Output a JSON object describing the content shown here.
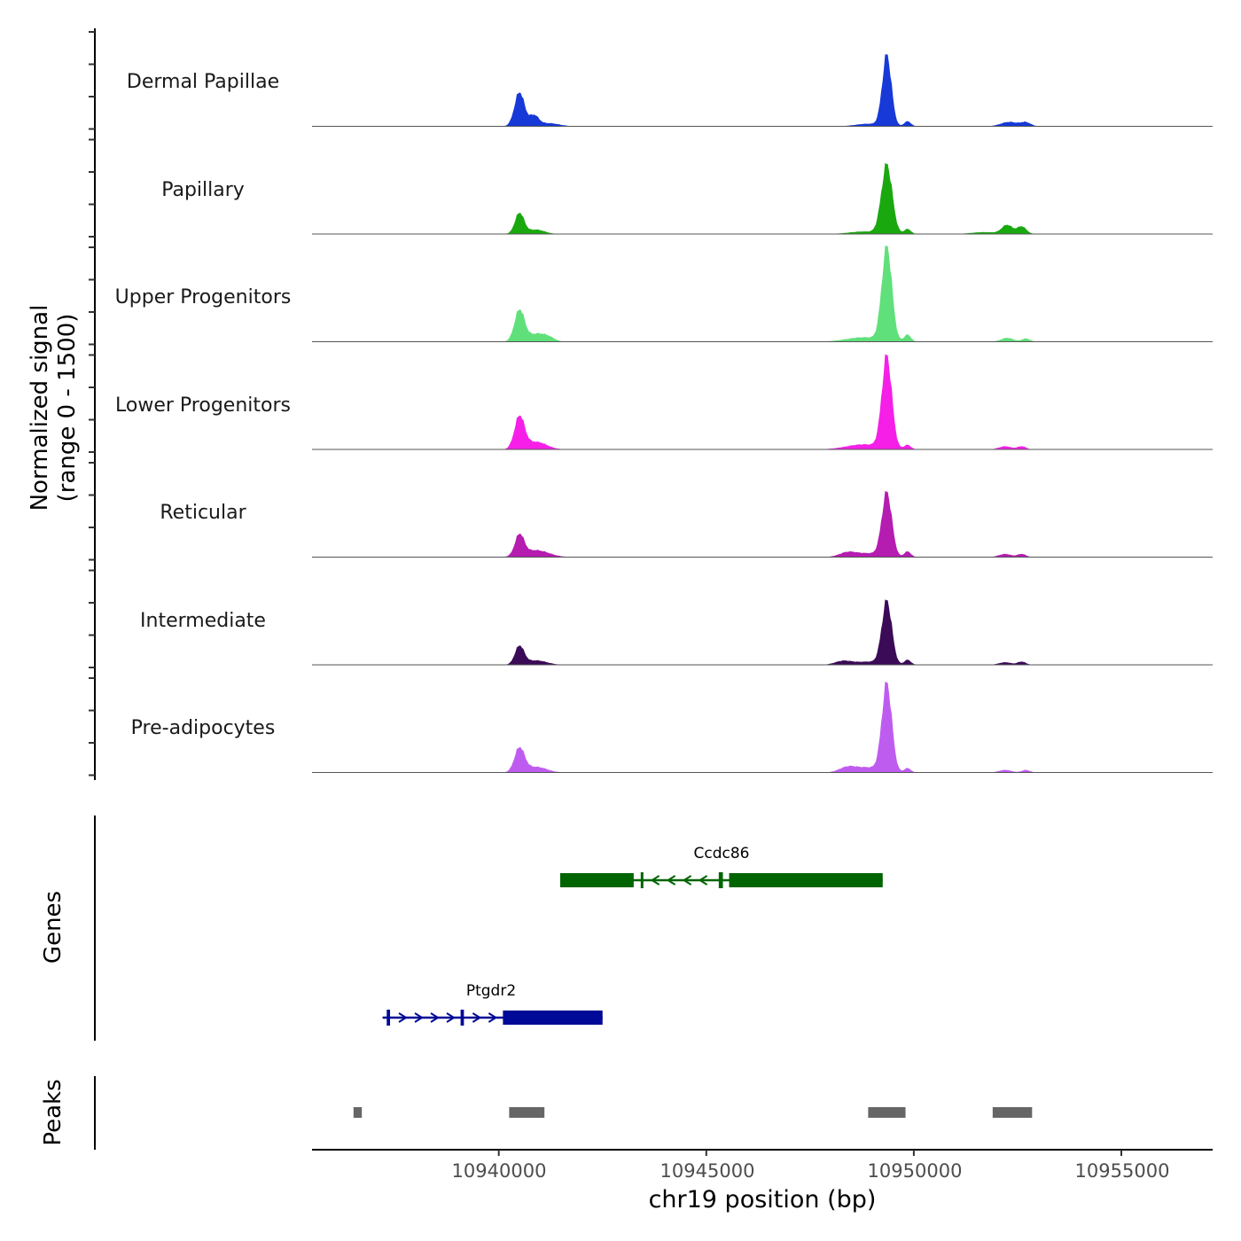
{
  "chart_data": {
    "type": "area",
    "chromosome": "chr19",
    "xlabel": "chr19 position (bp)",
    "ylabel_line1": "Normalized signal",
    "ylabel_line2": "(range 0 - 1500)",
    "signal_range": [
      0,
      1500
    ],
    "xlim": [
      10935500,
      10957200
    ],
    "x_ticks": [
      10940000,
      10945000,
      10950000,
      10955000
    ],
    "x_tick_labels": [
      "10940000",
      "10945000",
      "10950000",
      "10955000"
    ],
    "genes_label": "Genes",
    "peaks_label": "Peaks",
    "tracks": [
      {
        "name": "Dermal Papillae",
        "color": "#1739d8",
        "peaks": [
          [
            10940500,
            540,
            120
          ],
          [
            10940850,
            160,
            110
          ],
          [
            10941200,
            50,
            250
          ],
          [
            10948900,
            40,
            300
          ],
          [
            10949350,
            1120,
            110
          ],
          [
            10949850,
            80,
            80
          ],
          [
            10952300,
            70,
            200
          ],
          [
            10952700,
            60,
            120
          ]
        ]
      },
      {
        "name": "Papillary",
        "color": "#1aa80f",
        "peaks": [
          [
            10940500,
            330,
            110
          ],
          [
            10940900,
            70,
            200
          ],
          [
            10948800,
            40,
            350
          ],
          [
            10949350,
            1090,
            130
          ],
          [
            10949850,
            80,
            80
          ],
          [
            10951700,
            30,
            300
          ],
          [
            10952250,
            140,
            130
          ],
          [
            10952600,
            120,
            110
          ]
        ]
      },
      {
        "name": "Upper Progenitors",
        "color": "#60e07a",
        "peaks": [
          [
            10940500,
            500,
            120
          ],
          [
            10940900,
            120,
            200
          ],
          [
            10941200,
            60,
            150
          ],
          [
            10948800,
            70,
            420
          ],
          [
            10949350,
            1500,
            120
          ],
          [
            10949850,
            110,
            80
          ],
          [
            10952250,
            60,
            150
          ],
          [
            10952700,
            50,
            100
          ]
        ]
      },
      {
        "name": "Lower Progenitors",
        "color": "#f51fe8",
        "peaks": [
          [
            10940500,
            510,
            120
          ],
          [
            10940900,
            120,
            250
          ],
          [
            10948800,
            80,
            420
          ],
          [
            10949350,
            1450,
            120
          ],
          [
            10949850,
            70,
            80
          ],
          [
            10952200,
            50,
            150
          ],
          [
            10952600,
            50,
            100
          ]
        ]
      },
      {
        "name": "Reticular",
        "color": "#b51cb0",
        "peaks": [
          [
            10940500,
            330,
            110
          ],
          [
            10940900,
            110,
            300
          ],
          [
            10948400,
            70,
            200
          ],
          [
            10948900,
            60,
            300
          ],
          [
            10949350,
            1010,
            120
          ],
          [
            10949850,
            90,
            80
          ],
          [
            10952200,
            50,
            150
          ],
          [
            10952600,
            50,
            100
          ]
        ]
      },
      {
        "name": "Intermediate",
        "color": "#3b0b57",
        "peaks": [
          [
            10940500,
            290,
            110
          ],
          [
            10940900,
            70,
            250
          ],
          [
            10948300,
            60,
            200
          ],
          [
            10948900,
            50,
            300
          ],
          [
            10949350,
            1000,
            120
          ],
          [
            10949850,
            80,
            80
          ],
          [
            10952200,
            40,
            150
          ],
          [
            10952600,
            50,
            100
          ]
        ]
      },
      {
        "name": "Pre-adipocytes",
        "color": "#bf5cf0",
        "peaks": [
          [
            10940500,
            380,
            120
          ],
          [
            10940900,
            90,
            250
          ],
          [
            10948400,
            80,
            200
          ],
          [
            10948900,
            80,
            300
          ],
          [
            10949350,
            1390,
            120
          ],
          [
            10949850,
            70,
            80
          ],
          [
            10952200,
            40,
            150
          ],
          [
            10952700,
            40,
            100
          ]
        ]
      }
    ],
    "genes": [
      {
        "name": "Ccdc86",
        "strand": "-",
        "color": "#006400",
        "start": 10941480,
        "end": 10949250,
        "blocks": [
          [
            10941480,
            10943250
          ],
          [
            10943420,
            10943480
          ],
          [
            10945300,
            10945400
          ],
          [
            10945550,
            10949250
          ]
        ]
      },
      {
        "name": "Ptgdr2",
        "strand": "+",
        "color": "#000a96",
        "start": 10937200,
        "end": 10942500,
        "blocks": [
          [
            10937300,
            10937380
          ],
          [
            10939080,
            10939160
          ],
          [
            10940100,
            10942500
          ]
        ]
      }
    ],
    "peak_regions": [
      [
        10936500,
        10936700
      ],
      [
        10940250,
        10941100
      ],
      [
        10948900,
        10949800
      ],
      [
        10951900,
        10952850
      ]
    ]
  }
}
